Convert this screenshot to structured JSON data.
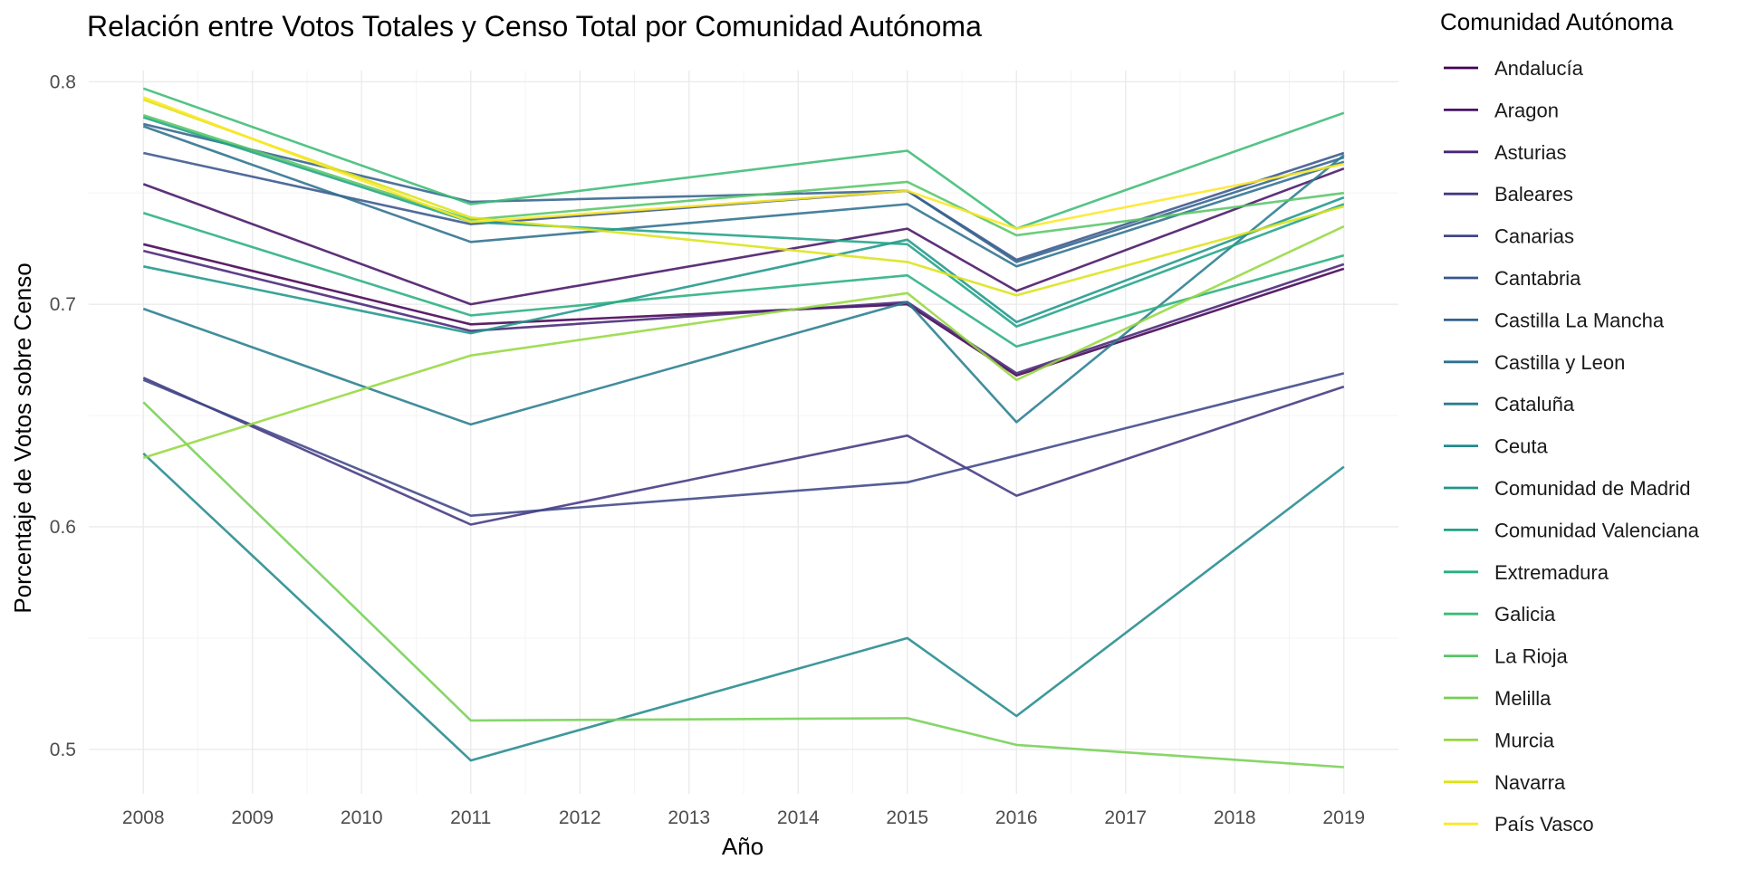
{
  "chart_data": {
    "type": "line",
    "title": "Relación entre Votos Totales y Censo Total por Comunidad Autónoma",
    "xlabel": "Año",
    "ylabel": "Porcentaje de Votos sobre Censo",
    "x_ticks": [
      "2008",
      "2009",
      "2010",
      "2011",
      "2012",
      "2013",
      "2014",
      "2015",
      "2016",
      "2017",
      "2018",
      "2019"
    ],
    "y_ticks": [
      "0.5",
      "0.6",
      "0.7",
      "0.8"
    ],
    "xlim": [
      2007.5,
      2019.5
    ],
    "ylim": [
      0.48,
      0.805
    ],
    "x": [
      2008,
      2011,
      2015,
      2016,
      2019
    ],
    "grid": true,
    "legend_title": "Comunidad Autónoma",
    "legend_position": "right",
    "series": [
      {
        "name": "Andalucía",
        "color": "#440154",
        "values": [
          0.727,
          0.691,
          0.7,
          0.668,
          0.716
        ]
      },
      {
        "name": "Aragon",
        "color": "#481467",
        "values": [
          0.754,
          0.7,
          0.734,
          0.706,
          0.761
        ]
      },
      {
        "name": "Asturias",
        "color": "#482576",
        "values": [
          0.724,
          0.688,
          0.701,
          0.669,
          0.718
        ]
      },
      {
        "name": "Baleares",
        "color": "#453781",
        "values": [
          0.667,
          0.601,
          0.641,
          0.614,
          0.663
        ]
      },
      {
        "name": "Canarias",
        "color": "#3F4788",
        "values": [
          0.666,
          0.605,
          0.62,
          0.632,
          0.669
        ]
      },
      {
        "name": "Cantabria",
        "color": "#39568C",
        "values": [
          0.768,
          0.736,
          0.751,
          0.72,
          0.768
        ]
      },
      {
        "name": "Castilla La Mancha",
        "color": "#33638D",
        "values": [
          0.781,
          0.746,
          0.751,
          0.719,
          0.766
        ]
      },
      {
        "name": "Castilla y Leon",
        "color": "#2D718E",
        "values": [
          0.78,
          0.728,
          0.745,
          0.717,
          0.764
        ]
      },
      {
        "name": "Cataluña",
        "color": "#287D8E",
        "values": [
          0.698,
          0.646,
          0.701,
          0.647,
          0.767
        ]
      },
      {
        "name": "Ceuta",
        "color": "#238A8D",
        "values": [
          0.633,
          0.495,
          0.55,
          0.515,
          0.627
        ]
      },
      {
        "name": "Comunidad de Madrid",
        "color": "#1F968B",
        "values": [
          0.717,
          0.687,
          0.729,
          0.692,
          0.748
        ]
      },
      {
        "name": "Comunidad Valenciana",
        "color": "#20A386",
        "values": [
          0.784,
          0.737,
          0.727,
          0.69,
          0.745
        ]
      },
      {
        "name": "Extremadura",
        "color": "#29AF7F",
        "values": [
          0.741,
          0.695,
          0.713,
          0.681,
          0.722
        ]
      },
      {
        "name": "Galicia",
        "color": "#3CBC75",
        "values": [
          0.797,
          0.745,
          0.769,
          0.734,
          0.786
        ]
      },
      {
        "name": "La Rioja",
        "color": "#56C667",
        "values": [
          0.785,
          0.738,
          0.755,
          0.731,
          0.75
        ]
      },
      {
        "name": "Melilla",
        "color": "#75D054",
        "values": [
          0.656,
          0.513,
          0.514,
          0.502,
          0.492
        ]
      },
      {
        "name": "Murcia",
        "color": "#95D840",
        "values": [
          0.631,
          0.677,
          0.705,
          0.666,
          0.735
        ]
      },
      {
        "name": "Navarra",
        "color": "#DCE318",
        "values": [
          0.792,
          0.739,
          0.719,
          0.704,
          0.744
        ]
      },
      {
        "name": "País Vasco",
        "color": "#FDE725",
        "values": [
          0.793,
          0.737,
          0.751,
          0.734,
          0.763
        ]
      }
    ]
  }
}
